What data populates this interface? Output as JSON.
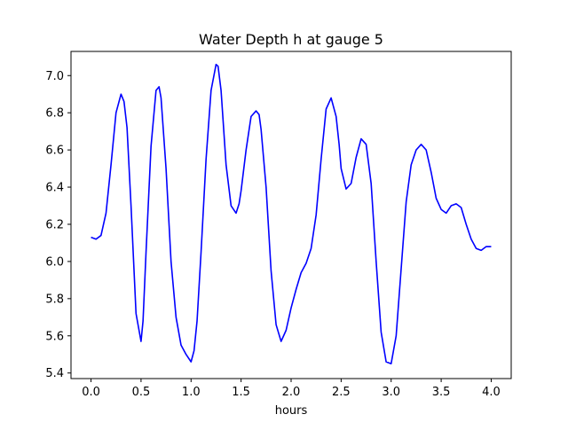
{
  "chart_data": {
    "type": "line",
    "title": "Water Depth h at gauge 5",
    "xlabel": "hours",
    "ylabel": "",
    "xlim": [
      -0.2,
      4.2
    ],
    "ylim": [
      5.37,
      7.13
    ],
    "xticks": [
      0.0,
      0.5,
      1.0,
      1.5,
      2.0,
      2.5,
      3.0,
      3.5,
      4.0
    ],
    "xtick_labels": [
      "0.0",
      "0.5",
      "1.0",
      "1.5",
      "2.0",
      "2.5",
      "3.0",
      "3.5",
      "4.0"
    ],
    "yticks": [
      5.4,
      5.6,
      5.8,
      6.0,
      6.2,
      6.4,
      6.6,
      6.8,
      7.0
    ],
    "ytick_labels": [
      "5.4",
      "5.6",
      "5.8",
      "6.0",
      "6.2",
      "6.4",
      "6.6",
      "6.8",
      "7.0"
    ],
    "grid": false,
    "series": [
      {
        "color": "#0000ff",
        "x": [
          0.0,
          0.05,
          0.1,
          0.15,
          0.2,
          0.25,
          0.3,
          0.33,
          0.36,
          0.4,
          0.45,
          0.5,
          0.52,
          0.55,
          0.6,
          0.65,
          0.68,
          0.7,
          0.75,
          0.8,
          0.85,
          0.9,
          0.95,
          1.0,
          1.03,
          1.06,
          1.1,
          1.15,
          1.2,
          1.25,
          1.27,
          1.3,
          1.35,
          1.4,
          1.45,
          1.48,
          1.5,
          1.55,
          1.6,
          1.65,
          1.68,
          1.7,
          1.75,
          1.8,
          1.85,
          1.9,
          1.95,
          2.0,
          2.05,
          2.1,
          2.15,
          2.2,
          2.25,
          2.3,
          2.35,
          2.4,
          2.45,
          2.48,
          2.5,
          2.55,
          2.6,
          2.65,
          2.7,
          2.75,
          2.8,
          2.85,
          2.9,
          2.95,
          3.0,
          3.05,
          3.1,
          3.15,
          3.2,
          3.25,
          3.3,
          3.35,
          3.4,
          3.45,
          3.5,
          3.55,
          3.6,
          3.65,
          3.7,
          3.75,
          3.8,
          3.85,
          3.9,
          3.95,
          4.0
        ],
        "y": [
          6.13,
          6.12,
          6.14,
          6.26,
          6.52,
          6.8,
          6.9,
          6.86,
          6.72,
          6.3,
          5.72,
          5.57,
          5.68,
          6.05,
          6.62,
          6.92,
          6.94,
          6.88,
          6.5,
          6.0,
          5.7,
          5.55,
          5.5,
          5.46,
          5.52,
          5.68,
          6.05,
          6.55,
          6.92,
          7.06,
          7.05,
          6.92,
          6.52,
          6.3,
          6.26,
          6.31,
          6.38,
          6.6,
          6.78,
          6.81,
          6.79,
          6.71,
          6.4,
          5.95,
          5.66,
          5.57,
          5.63,
          5.75,
          5.85,
          5.94,
          5.99,
          6.07,
          6.25,
          6.55,
          6.82,
          6.88,
          6.78,
          6.63,
          6.5,
          6.39,
          6.42,
          6.56,
          6.66,
          6.63,
          6.42,
          6.0,
          5.62,
          5.46,
          5.45,
          5.6,
          5.96,
          6.32,
          6.52,
          6.6,
          6.63,
          6.6,
          6.48,
          6.34,
          6.28,
          6.26,
          6.3,
          6.31,
          6.29,
          6.2,
          6.12,
          6.07,
          6.06,
          6.08,
          6.08
        ]
      }
    ]
  }
}
